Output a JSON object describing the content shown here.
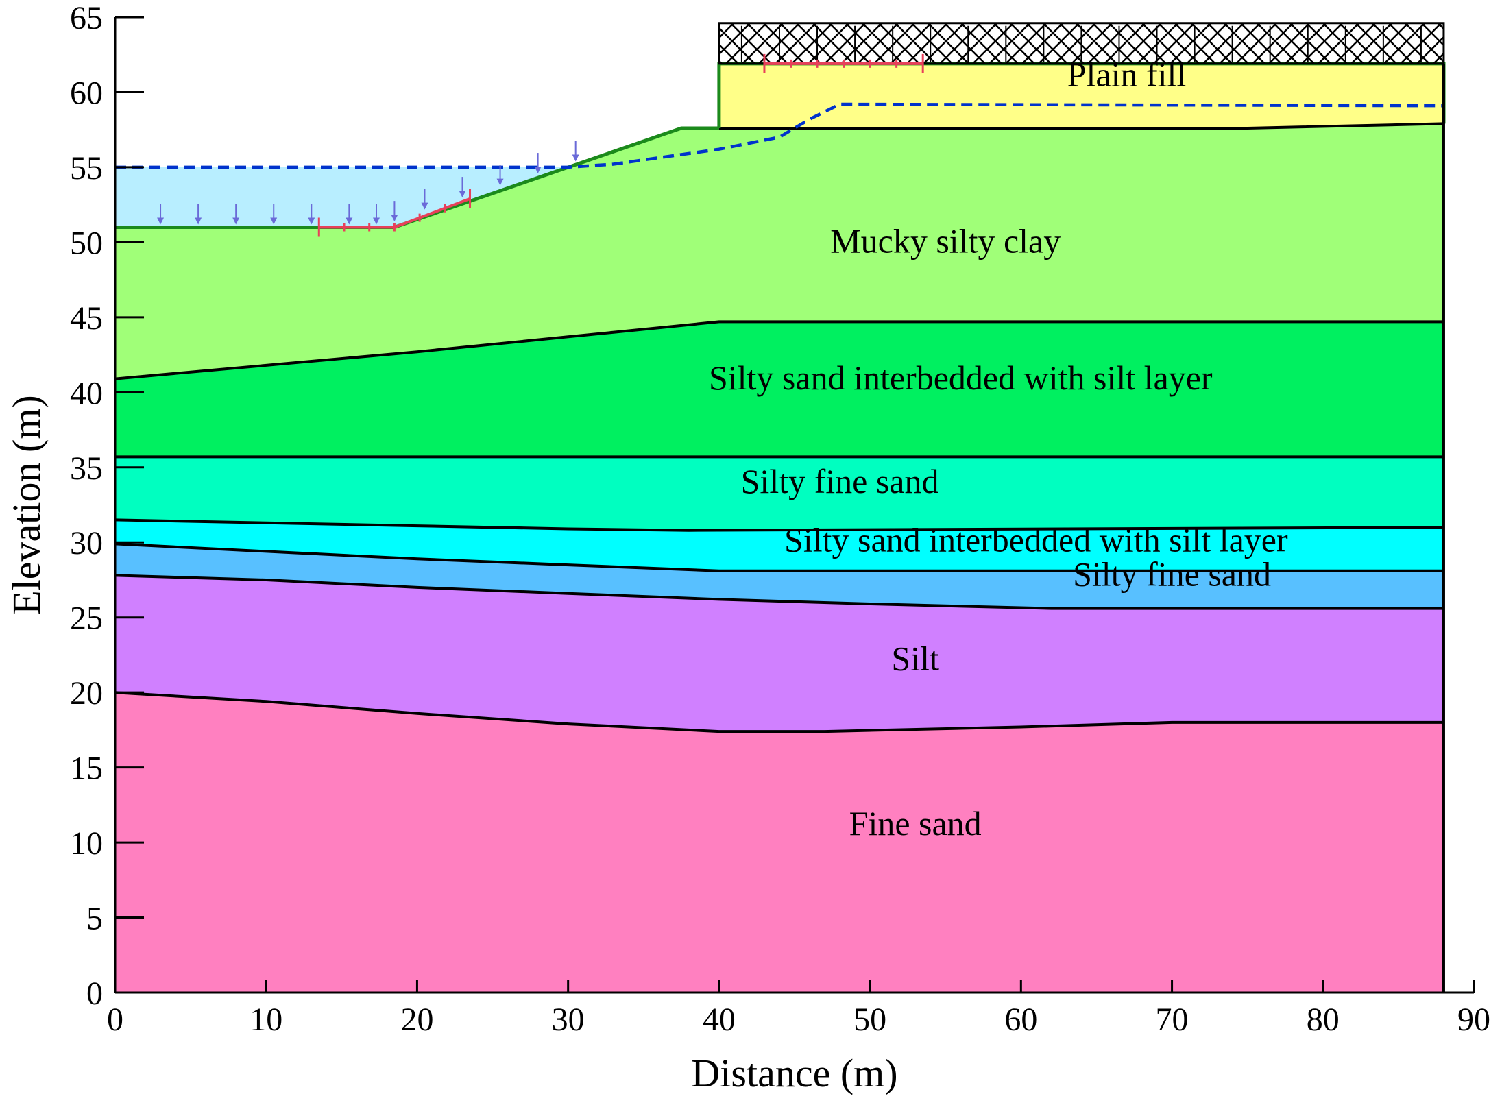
{
  "chart_data": {
    "type": "cross-section",
    "xlabel": "Distance (m)",
    "ylabel": "Elevation (m)",
    "xlim": [
      0,
      90
    ],
    "ylim": [
      0,
      65
    ],
    "model_extent_x": 88,
    "x_ticks": [
      0,
      10,
      20,
      30,
      40,
      50,
      60,
      70,
      80,
      90
    ],
    "y_ticks": [
      0,
      5,
      10,
      15,
      20,
      25,
      30,
      35,
      40,
      45,
      50,
      55,
      60,
      65
    ],
    "layers": [
      {
        "name": "Fine sand",
        "color": "#ff80c0",
        "label_at": [
          53,
          10.5
        ],
        "top": [
          [
            0,
            20
          ],
          [
            10,
            19.4
          ],
          [
            20,
            18.6
          ],
          [
            30,
            17.9
          ],
          [
            40,
            17.4
          ],
          [
            47,
            17.4
          ],
          [
            60,
            17.7
          ],
          [
            70,
            18
          ],
          [
            88,
            18
          ]
        ]
      },
      {
        "name": "Silt",
        "color": "#d080ff",
        "label_at": [
          53,
          21.5
        ],
        "top": [
          [
            0,
            27.8
          ],
          [
            10,
            27.5
          ],
          [
            20,
            27
          ],
          [
            30,
            26.6
          ],
          [
            40,
            26.2
          ],
          [
            50,
            25.9
          ],
          [
            62,
            25.6
          ],
          [
            88,
            25.6
          ]
        ]
      },
      {
        "name": "Silty fine sand",
        "color": "#58c0ff",
        "label_at": [
          70,
          27.1
        ],
        "top": [
          [
            0,
            29.9
          ],
          [
            10,
            29.4
          ],
          [
            20,
            28.9
          ],
          [
            30,
            28.5
          ],
          [
            40,
            28.1
          ],
          [
            88,
            28.1
          ]
        ]
      },
      {
        "name": "Silty sand interbedded with silt layer",
        "color": "#00ffff",
        "label_at": [
          61,
          29.4
        ],
        "top": [
          [
            0,
            31.5
          ],
          [
            10,
            31.3
          ],
          [
            20,
            31.1
          ],
          [
            30,
            30.9
          ],
          [
            38,
            30.8
          ],
          [
            88,
            31
          ]
        ]
      },
      {
        "name": "Silty fine sand",
        "color": "#00ffc0",
        "label_at": [
          48,
          33.3
        ],
        "top": [
          [
            0,
            35.7
          ],
          [
            88,
            35.7
          ]
        ]
      },
      {
        "name": "Silty sand interbedded with silt layer",
        "color": "#00f060",
        "label_at": [
          56,
          40.2
        ],
        "top": [
          [
            0,
            40.9
          ],
          [
            10,
            41.8
          ],
          [
            20,
            42.7
          ],
          [
            30,
            43.7
          ],
          [
            40,
            44.7
          ],
          [
            88,
            44.7
          ]
        ]
      },
      {
        "name": "Mucky silty clay",
        "color": "#a0ff78",
        "label_at": [
          55,
          49.3
        ],
        "top": [
          [
            0,
            51
          ],
          [
            18.5,
            51
          ],
          [
            37.5,
            57.6
          ],
          [
            40,
            57.6
          ],
          [
            48,
            57.6
          ],
          [
            60,
            57.6
          ],
          [
            75,
            57.6
          ],
          [
            88,
            57.9
          ]
        ]
      },
      {
        "name": "Plain fill",
        "color": "#ffff88",
        "label_at": [
          67,
          60.4
        ],
        "top": [
          [
            40,
            61.9
          ],
          [
            88,
            61.9
          ]
        ]
      }
    ],
    "water_level": {
      "color": "#0033cc",
      "points": [
        [
          0,
          55
        ],
        [
          30,
          55
        ],
        [
          33,
          55.2
        ],
        [
          40,
          56.2
        ],
        [
          44,
          57
        ],
        [
          46,
          58.2
        ],
        [
          48,
          59.2
        ],
        [
          88,
          59.1
        ]
      ]
    },
    "ponded_water": {
      "color": "#b8eeff",
      "points": [
        [
          0,
          55
        ],
        [
          30.3,
          55
        ],
        [
          18.5,
          51
        ],
        [
          0,
          51
        ]
      ]
    },
    "surcharge_load": {
      "x_start": 40,
      "x_end": 88,
      "y_bottom": 61.9,
      "y_top": 64.6
    },
    "slip_surface_limits": [
      {
        "x_start": 13.5,
        "x_end": 23.5,
        "y_at_start": 51,
        "y_at_end": 52.9
      },
      {
        "x_start": 43,
        "x_end": 53.5,
        "y_at_start": 61.9,
        "y_at_end": 61.9
      }
    ]
  }
}
